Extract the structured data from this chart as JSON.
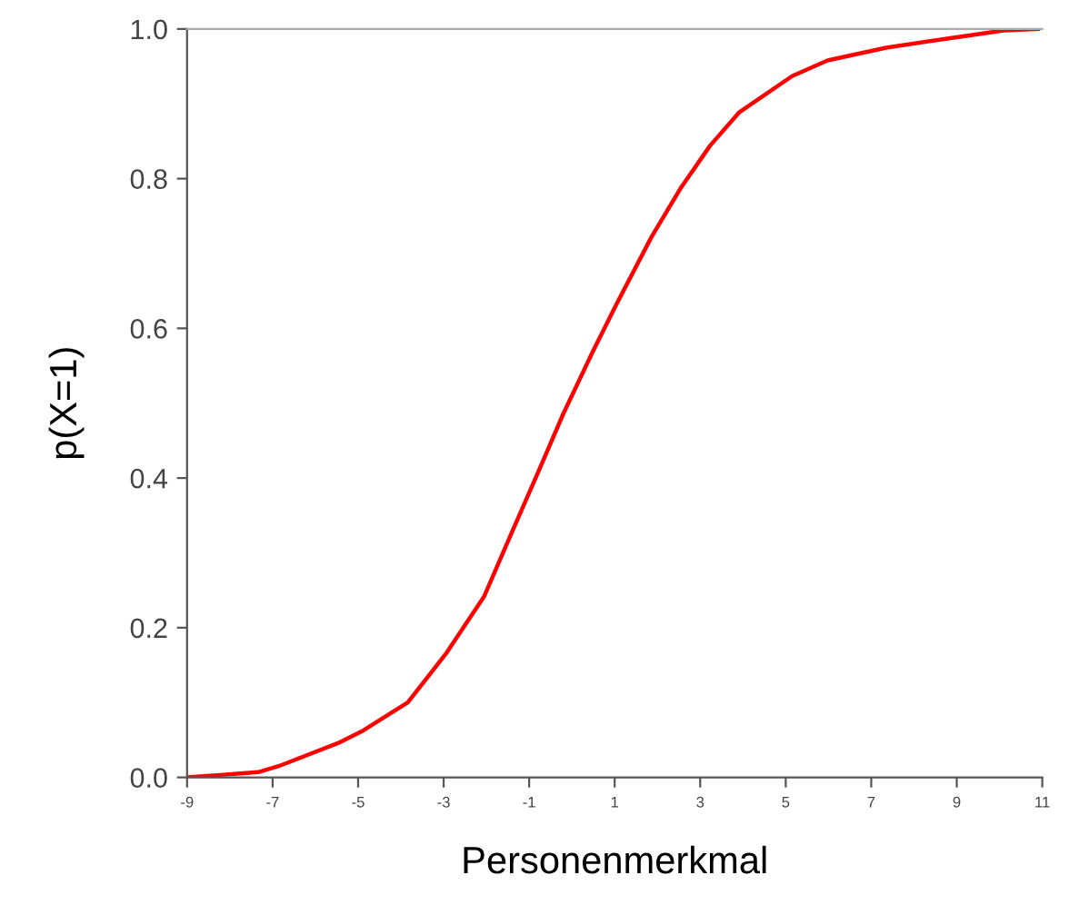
{
  "chart_data": {
    "type": "line",
    "xlabel": "Personenmerkmal",
    "ylabel": "p(X=1)",
    "series": [
      {
        "color": "#ff0000",
        "x": [
          -9,
          -7.34,
          -6.86,
          -5.42,
          -4.87,
          -3.84,
          -2.95,
          -2.05,
          -1.43,
          -0.75,
          -0.2,
          0.48,
          1.04,
          1.86,
          2.54,
          3.23,
          3.92,
          5.15,
          5.98,
          7.35,
          9.0,
          10.1,
          10.9
        ],
        "values": [
          0.0,
          0.007,
          0.015,
          0.047,
          0.063,
          0.1,
          0.165,
          0.242,
          0.324,
          0.413,
          0.486,
          0.568,
          0.632,
          0.722,
          0.787,
          0.844,
          0.889,
          0.937,
          0.958,
          0.975,
          0.989,
          0.998,
          1.0
        ]
      }
    ],
    "xlim": [
      -9,
      11
    ],
    "xticks": [
      -9,
      -7,
      -5,
      -3,
      -1,
      1,
      3,
      5,
      7,
      9,
      11
    ],
    "ylim": [
      0,
      1.0
    ],
    "yticks": [
      {
        "value": 0,
        "label": "0.0"
      },
      {
        "value": 0.2,
        "label": "0.2"
      },
      {
        "value": 0.4,
        "label": "0.4"
      },
      {
        "value": 0.6,
        "label": "0.6"
      },
      {
        "value": 0.8,
        "label": "0.8"
      },
      {
        "value": 1.0,
        "label": "1.0"
      }
    ],
    "grid": false,
    "marker": "none",
    "line_style": "solid"
  }
}
